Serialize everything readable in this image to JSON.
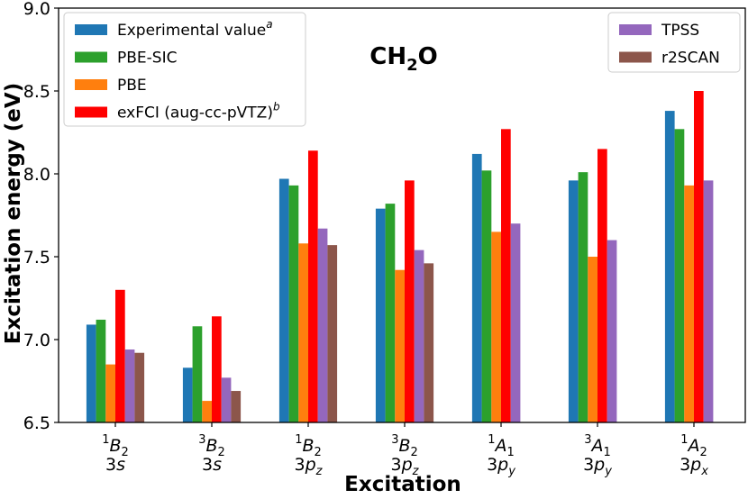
{
  "chart_data": {
    "type": "bar",
    "title": {
      "main": "CH",
      "sub": "2",
      "tail": "O"
    },
    "xlabel": "Excitation",
    "ylabel": "Excitation energy (eV)",
    "ylim": [
      6.5,
      9.0
    ],
    "yticks": [
      "6.5",
      "7.0",
      "7.5",
      "8.0",
      "8.5",
      "9.0"
    ],
    "categories": [
      {
        "sup": "1",
        "sym": "B",
        "sub": "2",
        "orb": "3",
        "orbit": "s",
        "orbsub": ""
      },
      {
        "sup": "3",
        "sym": "B",
        "sub": "2",
        "orb": "3",
        "orbit": "s",
        "orbsub": ""
      },
      {
        "sup": "1",
        "sym": "B",
        "sub": "2",
        "orb": "3",
        "orbit": "p",
        "orbsub": "z"
      },
      {
        "sup": "3",
        "sym": "B",
        "sub": "2",
        "orb": "3",
        "orbit": "p",
        "orbsub": "z"
      },
      {
        "sup": "1",
        "sym": "A",
        "sub": "1",
        "orb": "3",
        "orbit": "p",
        "orbsub": "y"
      },
      {
        "sup": "3",
        "sym": "A",
        "sub": "1",
        "orb": "3",
        "orbit": "p",
        "orbsub": "y"
      },
      {
        "sup": "1",
        "sym": "A",
        "sub": "2",
        "orb": "3",
        "orbit": "p",
        "orbsub": "x"
      }
    ],
    "series": [
      {
        "name": "Experimental value",
        "sup": "a",
        "color": "#1f77b4",
        "values": [
          7.09,
          6.83,
          7.97,
          7.79,
          8.12,
          7.96,
          8.38
        ]
      },
      {
        "name": "PBE-SIC",
        "sup": "",
        "color": "#2ca02c",
        "values": [
          7.12,
          7.08,
          7.93,
          7.82,
          8.02,
          8.01,
          8.27
        ]
      },
      {
        "name": "PBE",
        "sup": "",
        "color": "#ff7f0e",
        "values": [
          6.85,
          6.63,
          7.58,
          7.42,
          7.65,
          7.5,
          7.93
        ]
      },
      {
        "name": "exFCI (aug-cc-pVTZ)",
        "sup": "b",
        "color": "#ff0000",
        "values": [
          7.3,
          7.14,
          8.14,
          7.96,
          8.27,
          8.15,
          8.5
        ]
      },
      {
        "name": "TPSS",
        "sup": "",
        "color": "#9467bd",
        "values": [
          6.94,
          6.77,
          7.67,
          7.54,
          7.7,
          7.6,
          7.96
        ]
      },
      {
        "name": "r2SCAN",
        "sup": "",
        "color": "#8c564b",
        "values": [
          6.92,
          6.69,
          7.57,
          7.46,
          null,
          null,
          null
        ]
      }
    ],
    "legends": [
      {
        "location": "top-left",
        "series": [
          0,
          1,
          2,
          3
        ]
      },
      {
        "location": "top-right",
        "series": [
          4,
          5
        ]
      }
    ]
  }
}
